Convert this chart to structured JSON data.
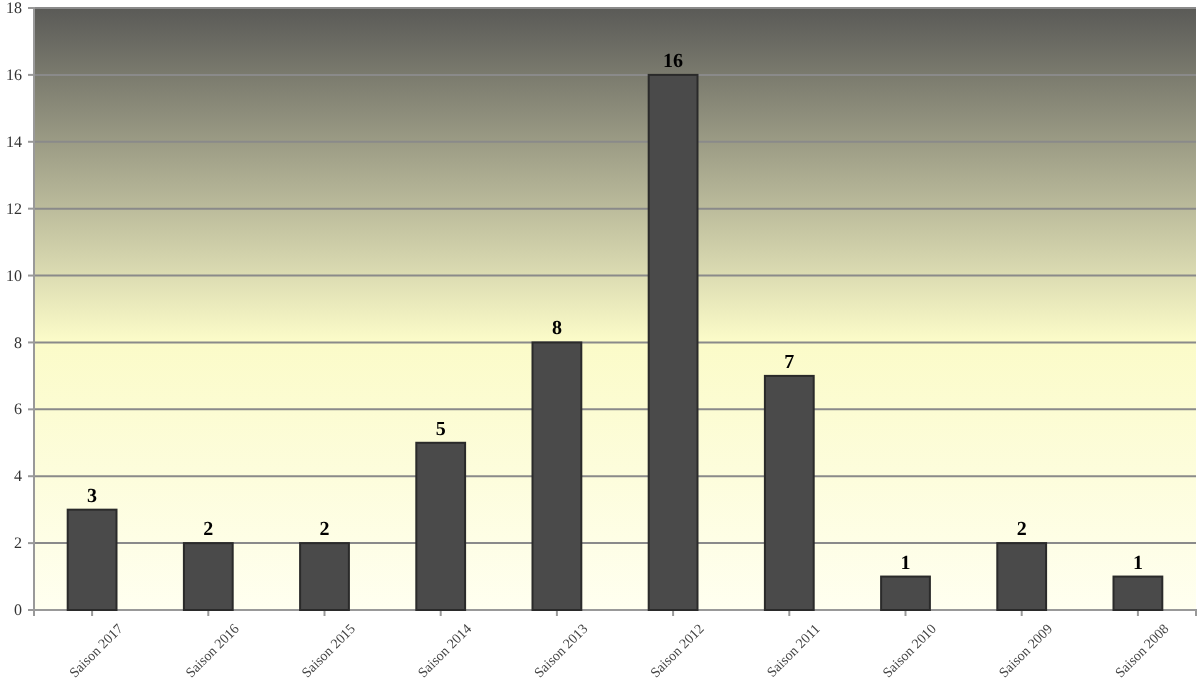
{
  "chart_data": {
    "type": "bar",
    "categories": [
      "Saison 2017",
      "Saison 2016",
      "Saison 2015",
      "Saison 2014",
      "Saison 2013",
      "Saison 2012",
      "Saison 2011",
      "Saison 2010",
      "Saison 2009",
      "Saison 2008"
    ],
    "values": [
      3,
      2,
      2,
      5,
      8,
      16,
      7,
      1,
      2,
      1
    ],
    "color": "#4a4a4a",
    "ylim": [
      0,
      18
    ],
    "yticks": [
      0,
      2,
      4,
      6,
      8,
      10,
      12,
      14,
      16,
      18
    ],
    "grid": "y",
    "data_labels": true
  }
}
